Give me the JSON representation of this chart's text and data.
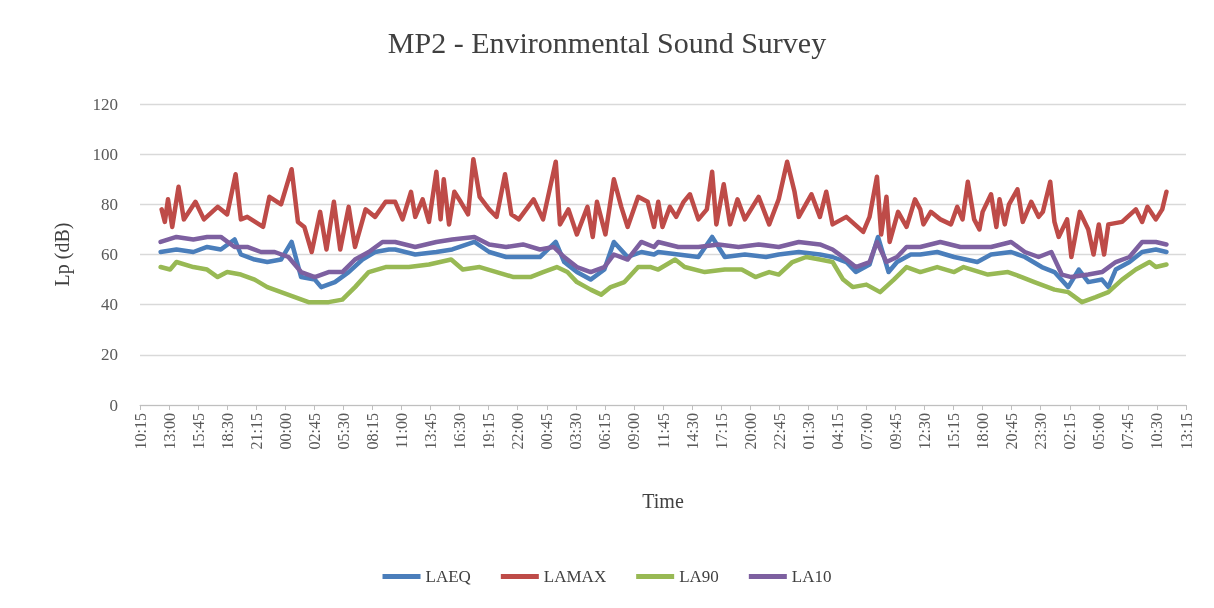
{
  "chart_data": {
    "type": "line",
    "title": "MP2 - Environmental Sound Survey",
    "xlabel": "Time",
    "ylabel": "Lp (dB)",
    "xlim": [
      "--01-01T10:15",
      "--01-05T13:15"
    ],
    "ylim": [
      0,
      120
    ],
    "yticks": [
      0,
      20,
      40,
      60,
      80,
      100,
      120
    ],
    "xticks": [
      {
        "value": "--01-01T10:15",
        "label": "10:15"
      },
      {
        "value": "--01-01T13:00",
        "label": "13:00"
      },
      {
        "value": "--01-01T15:45",
        "label": "15:45"
      },
      {
        "value": "--01-01T18:30",
        "label": "18:30"
      },
      {
        "value": "--01-01T21:15",
        "label": "21:15"
      },
      {
        "value": "--01-02T00:00",
        "label": "00:00"
      },
      {
        "value": "--01-02T02:45",
        "label": "02:45"
      },
      {
        "value": "--01-02T05:30",
        "label": "05:30"
      },
      {
        "value": "--01-02T08:15",
        "label": "08:15"
      },
      {
        "value": "--01-02T11:00",
        "label": "11:00"
      },
      {
        "value": "--01-02T13:45",
        "label": "13:45"
      },
      {
        "value": "--01-02T16:30",
        "label": "16:30"
      },
      {
        "value": "--01-02T19:15",
        "label": "19:15"
      },
      {
        "value": "--01-02T22:00",
        "label": "22:00"
      },
      {
        "value": "--01-03T00:45",
        "label": "00:45"
      },
      {
        "value": "--01-03T03:30",
        "label": "03:30"
      },
      {
        "value": "--01-03T06:15",
        "label": "06:15"
      },
      {
        "value": "--01-03T09:00",
        "label": "09:00"
      },
      {
        "value": "--01-03T11:45",
        "label": "11:45"
      },
      {
        "value": "--01-03T14:30",
        "label": "14:30"
      },
      {
        "value": "--01-03T17:15",
        "label": "17:15"
      },
      {
        "value": "--01-03T20:00",
        "label": "20:00"
      },
      {
        "value": "--01-03T22:45",
        "label": "22:45"
      },
      {
        "value": "--01-04T01:30",
        "label": "01:30"
      },
      {
        "value": "--01-04T04:15",
        "label": "04:15"
      },
      {
        "value": "--01-04T07:00",
        "label": "07:00"
      },
      {
        "value": "--01-04T09:45",
        "label": "09:45"
      },
      {
        "value": "--01-04T12:30",
        "label": "12:30"
      },
      {
        "value": "--01-04T15:15",
        "label": "15:15"
      },
      {
        "value": "--01-04T18:00",
        "label": "18:00"
      },
      {
        "value": "--01-04T20:45",
        "label": "20:45"
      },
      {
        "value": "--01-04T23:30",
        "label": "23:30"
      },
      {
        "value": "--01-05T02:15",
        "label": "02:15"
      },
      {
        "value": "--01-05T05:00",
        "label": "05:00"
      },
      {
        "value": "--01-05T07:45",
        "label": "07:45"
      },
      {
        "value": "--01-05T10:30",
        "label": "10:30"
      },
      {
        "value": "--01-05T13:15",
        "label": "13:15"
      }
    ],
    "grid": "y",
    "legend": "bottom",
    "marker": "none",
    "line_style": "solid",
    "series": [
      {
        "name": "LAEQ",
        "color": "#4a7ebb",
        "x": [
          "--01-01T12:12",
          "--01-01T13:42",
          "--01-01T15:18",
          "--01-01T16:36",
          "--01-01T17:54",
          "--01-01T19:12",
          "--01-01T19:48",
          "--01-01T21:06",
          "--01-01T22:18",
          "--01-01T23:36",
          "--01-02T00:36",
          "--01-02T01:30",
          "--01-02T02:48",
          "--01-02T03:24",
          "--01-02T04:42",
          "--01-02T06:00",
          "--01-02T07:18",
          "--01-02T08:30",
          "--01-02T09:48",
          "--01-02T10:24",
          "--01-02T12:18",
          "--01-02T14:18",
          "--01-02T15:48",
          "--01-02T17:54",
          "--01-02T19:18",
          "--01-02T20:54",
          "--01-02T22:30",
          "--01-03T00:06",
          "--01-03T01:36",
          "--01-03T02:24",
          "--01-03T03:36",
          "--01-03T04:54",
          "--01-03T06:12",
          "--01-03T07:06",
          "--01-03T08:24",
          "--01-03T09:42",
          "--01-03T10:54",
          "--01-03T11:18",
          "--01-03T13:12",
          "--01-03T15:06",
          "--01-03T16:24",
          "--01-03T17:36",
          "--01-03T19:30",
          "--01-03T21:30",
          "--01-03T22:42",
          "--01-04T00:36",
          "--01-04T02:36",
          "--01-04T03:48",
          "--01-04T05:06",
          "--01-04T06:00",
          "--01-04T07:18",
          "--01-04T08:06",
          "--01-04T09:06",
          "--01-04T09:54",
          "--01-04T11:12",
          "--01-04T12:06",
          "--01-04T13:42",
          "--01-04T15:18",
          "--01-04T17:30",
          "--01-04T18:48",
          "--01-04T20:42",
          "--01-04T22:00",
          "--01-04T23:36",
          "--01-05T00:48",
          "--01-05T02:06",
          "--01-05T03:06",
          "--01-05T04:00",
          "--01-05T05:18",
          "--01-05T05:54",
          "--01-05T06:36",
          "--01-05T07:54",
          "--01-05T09:06",
          "--01-05T10:24",
          "--01-05T11:24"
        ],
        "values": [
          61,
          62,
          61,
          63,
          62,
          66,
          60,
          58,
          57,
          58,
          65,
          51,
          50,
          47,
          49,
          53,
          58,
          61,
          62,
          62,
          60,
          61,
          62,
          65,
          61,
          59,
          59,
          59,
          65,
          57,
          53,
          50,
          54,
          65,
          59,
          61,
          60,
          61,
          60,
          59,
          67,
          59,
          60,
          59,
          60,
          61,
          60,
          59,
          57,
          53,
          56,
          67,
          53,
          57,
          60,
          60,
          61,
          59,
          57,
          60,
          61,
          59,
          55,
          53,
          47,
          54,
          49,
          50,
          47,
          54,
          57,
          61,
          62,
          61
        ]
      },
      {
        "name": "LAMAX",
        "color": "#be4b48",
        "x": [
          "--01-01T12:18",
          "--01-01T12:36",
          "--01-01T12:54",
          "--01-01T13:18",
          "--01-01T13:54",
          "--01-01T14:24",
          "--01-01T15:30",
          "--01-01T16:18",
          "--01-01T17:36",
          "--01-01T18:30",
          "--01-01T19:18",
          "--01-01T19:48",
          "--01-01T20:24",
          "--01-01T21:54",
          "--01-01T22:30",
          "--01-01T23:36",
          "--01-02T00:36",
          "--01-02T01:12",
          "--01-02T01:48",
          "--01-02T02:30",
          "--01-02T03:18",
          "--01-02T03:54",
          "--01-02T04:36",
          "--01-02T05:12",
          "--01-02T06:00",
          "--01-02T06:36",
          "--01-02T07:36",
          "--01-02T08:30",
          "--01-02T09:30",
          "--01-02T10:24",
          "--01-02T11:06",
          "--01-02T11:54",
          "--01-02T12:18",
          "--01-02T13:00",
          "--01-02T13:36",
          "--01-02T14:18",
          "--01-02T14:42",
          "--01-02T15:00",
          "--01-02T15:30",
          "--01-02T16:00",
          "--01-02T16:36",
          "--01-02T17:18",
          "--01-02T17:48",
          "--01-02T18:24",
          "--01-02T19:18",
          "--01-02T20:00",
          "--01-02T20:48",
          "--01-02T21:24",
          "--01-02T22:06",
          "--01-02T23:30",
          "--01-03T00:24",
          "--01-03T01:36",
          "--01-03T02:00",
          "--01-03T02:48",
          "--01-03T03:36",
          "--01-03T04:36",
          "--01-03T05:06",
          "--01-03T05:30",
          "--01-03T06:18",
          "--01-03T07:06",
          "--01-03T07:48",
          "--01-03T08:24",
          "--01-03T09:24",
          "--01-03T10:18",
          "--01-03T10:54",
          "--01-03T11:18",
          "--01-03T11:42",
          "--01-03T12:24",
          "--01-03T13:00",
          "--01-03T13:42",
          "--01-03T14:18",
          "--01-03T15:06",
          "--01-03T15:54",
          "--01-03T16:24",
          "--01-03T16:48",
          "--01-03T17:30",
          "--01-03T18:06",
          "--01-03T18:48",
          "--01-03T19:30",
          "--01-03T20:48",
          "--01-03T21:48",
          "--01-03T22:42",
          "--01-03T23:30",
          "--01-04T00:12",
          "--01-04T00:36",
          "--01-04T01:48",
          "--01-04T02:36",
          "--01-04T03:12",
          "--01-04T03:48",
          "--01-04T05:06",
          "--01-04T06:42",
          "--01-04T07:18",
          "--01-04T08:00",
          "--01-04T08:24",
          "--01-04T08:54",
          "--01-04T09:12",
          "--01-04T10:00",
          "--01-04T10:48",
          "--01-04T11:36",
          "--01-04T12:06",
          "--01-04T12:24",
          "--01-04T13:06",
          "--01-04T14:00",
          "--01-04T15:00",
          "--01-04T15:36",
          "--01-04T16:06",
          "--01-04T16:36",
          "--01-04T17:12",
          "--01-04T17:42",
          "--01-04T18:00",
          "--01-04T18:48",
          "--01-04T19:18",
          "--01-04T19:36",
          "--01-04T20:06",
          "--01-04T20:30",
          "--01-04T21:18",
          "--01-04T21:48",
          "--01-04T22:36",
          "--01-04T23:18",
          "--01-04T23:42",
          "--01-05T00:24",
          "--01-05T00:48",
          "--01-05T01:12",
          "--01-05T02:00",
          "--01-05T02:24",
          "--01-05T03:12",
          "--01-05T04:00",
          "--01-05T04:30",
          "--01-05T05:00",
          "--01-05T05:30",
          "--01-05T05:54",
          "--01-05T07:12",
          "--01-05T08:30",
          "--01-05T09:06",
          "--01-05T09:36",
          "--01-05T10:24",
          "--01-05T11:00",
          "--01-05T11:24"
        ],
        "values": [
          78,
          73,
          82,
          71,
          87,
          74,
          81,
          74,
          79,
          76,
          92,
          74,
          75,
          71,
          83,
          80,
          94,
          73,
          71,
          61,
          77,
          62,
          81,
          62,
          79,
          63,
          78,
          75,
          81,
          81,
          74,
          85,
          75,
          82,
          73,
          93,
          74,
          90,
          72,
          85,
          81,
          76,
          98,
          83,
          78,
          75,
          92,
          76,
          74,
          82,
          74,
          97,
          72,
          78,
          68,
          79,
          67,
          81,
          68,
          90,
          79,
          71,
          83,
          81,
          71,
          81,
          71,
          79,
          75,
          81,
          84,
          74,
          78,
          93,
          72,
          88,
          72,
          82,
          74,
          83,
          72,
          82,
          97,
          85,
          75,
          84,
          75,
          85,
          72,
          75,
          69,
          75,
          91,
          68,
          83,
          65,
          77,
          71,
          82,
          78,
          72,
          77,
          74,
          72,
          79,
          74,
          89,
          74,
          70,
          77,
          84,
          71,
          82,
          72,
          80,
          86,
          73,
          81,
          75,
          77,
          89,
          73,
          67,
          74,
          59,
          77,
          70,
          60,
          72,
          60,
          72,
          73,
          78,
          73,
          79,
          74,
          78,
          85
        ]
      },
      {
        "name": "LA90",
        "color": "#98b954",
        "x": [
          "--01-01T12:12",
          "--01-01T13:06",
          "--01-01T13:42",
          "--01-01T15:18",
          "--01-01T16:36",
          "--01-01T17:36",
          "--01-01T18:30",
          "--01-01T19:48",
          "--01-01T21:06",
          "--01-01T22:18",
          "--01-01T23:36",
          "--01-02T00:54",
          "--01-02T02:12",
          "--01-02T04:06",
          "--01-02T05:24",
          "--01-02T06:36",
          "--01-02T07:54",
          "--01-02T09:30",
          "--01-02T10:24",
          "--01-02T11:42",
          "--01-02T13:36",
          "--01-02T15:42",
          "--01-02T16:48",
          "--01-02T18:24",
          "--01-02T20:00",
          "--01-02T21:36",
          "--01-02T23:12",
          "--01-03T00:24",
          "--01-03T01:42",
          "--01-03T02:42",
          "--01-03T03:36",
          "--01-03T04:54",
          "--01-03T05:54",
          "--01-03T06:48",
          "--01-03T08:06",
          "--01-03T09:24",
          "--01-03T10:36",
          "--01-03T11:18",
          "--01-03T12:54",
          "--01-03T13:48",
          "--01-03T15:42",
          "--01-03T17:36",
          "--01-03T19:12",
          "--01-03T20:30",
          "--01-03T21:48",
          "--01-03T22:42",
          "--01-04T00:00",
          "--01-04T01:18",
          "--01-04T02:36",
          "--01-04T03:48",
          "--01-04T04:48",
          "--01-04T05:42",
          "--01-04T07:00",
          "--01-04T08:18",
          "--01-04T09:36",
          "--01-04T10:48",
          "--01-04T12:06",
          "--01-04T13:42",
          "--01-04T15:18",
          "--01-04T16:12",
          "--01-04T18:30",
          "--01-04T20:24",
          "--01-04T21:42",
          "--01-04T22:54",
          "--01-05T00:48",
          "--01-05T02:06",
          "--01-05T03:24",
          "--01-05T04:42",
          "--01-05T05:54",
          "--01-05T07:12",
          "--01-05T08:30",
          "--01-05T09:48",
          "--01-05T10:24",
          "--01-05T11:24"
        ],
        "values": [
          55,
          54,
          57,
          55,
          54,
          51,
          53,
          52,
          50,
          47,
          45,
          43,
          41,
          41,
          42,
          47,
          53,
          55,
          55,
          55,
          56,
          58,
          54,
          55,
          53,
          51,
          51,
          53,
          55,
          53,
          49,
          46,
          44,
          47,
          49,
          55,
          55,
          54,
          58,
          55,
          53,
          54,
          54,
          51,
          53,
          52,
          57,
          59,
          58,
          57,
          50,
          47,
          48,
          45,
          50,
          55,
          53,
          55,
          53,
          55,
          52,
          53,
          51,
          49,
          46,
          45,
          41,
          43,
          45,
          50,
          54,
          57,
          55,
          56
        ]
      },
      {
        "name": "LA10",
        "color": "#7d60a0",
        "x": [
          "--01-01T12:12",
          "--01-01T13:42",
          "--01-01T15:18",
          "--01-01T16:36",
          "--01-01T17:54",
          "--01-01T19:12",
          "--01-01T20:24",
          "--01-01T21:42",
          "--01-01T23:00",
          "--01-02T00:18",
          "--01-02T01:30",
          "--01-02T02:48",
          "--01-02T04:06",
          "--01-02T05:24",
          "--01-02T06:36",
          "--01-02T07:54",
          "--01-02T09:12",
          "--01-02T10:24",
          "--01-02T12:18",
          "--01-02T14:18",
          "--01-02T15:48",
          "--01-02T17:54",
          "--01-02T19:18",
          "--01-02T20:54",
          "--01-02T22:30",
          "--01-03T00:06",
          "--01-03T01:24",
          "--01-03T02:24",
          "--01-03T03:36",
          "--01-03T04:54",
          "--01-03T06:12",
          "--01-03T07:06",
          "--01-03T08:24",
          "--01-03T09:42",
          "--01-03T10:54",
          "--01-03T11:18",
          "--01-03T13:12",
          "--01-03T15:06",
          "--01-03T17:00",
          "--01-03T18:54",
          "--01-03T20:48",
          "--01-03T22:42",
          "--01-04T00:36",
          "--01-04T02:36",
          "--01-04T03:48",
          "--01-04T05:06",
          "--01-04T06:00",
          "--01-04T07:18",
          "--01-04T08:00",
          "--01-04T08:54",
          "--01-04T09:54",
          "--01-04T10:48",
          "--01-04T12:06",
          "--01-04T14:00",
          "--01-04T15:54",
          "--01-04T17:30",
          "--01-04T18:48",
          "--01-04T20:42",
          "--01-04T22:00",
          "--01-04T23:18",
          "--01-05T00:30",
          "--01-05T01:30",
          "--01-05T02:24",
          "--01-05T04:00",
          "--01-05T05:18",
          "--01-05T06:36",
          "--01-05T07:54",
          "--01-05T09:06",
          "--01-05T10:24",
          "--01-05T11:24"
        ],
        "values": [
          65,
          67,
          66,
          67,
          67,
          63,
          63,
          61,
          61,
          59,
          53,
          51,
          53,
          53,
          58,
          61,
          65,
          65,
          63,
          65,
          66,
          67,
          64,
          63,
          64,
          62,
          63,
          59,
          55,
          53,
          55,
          60,
          58,
          65,
          63,
          65,
          63,
          63,
          64,
          63,
          64,
          63,
          65,
          64,
          62,
          58,
          55,
          57,
          65,
          57,
          59,
          63,
          63,
          65,
          63,
          63,
          63,
          65,
          61,
          59,
          61,
          52,
          51,
          52,
          53,
          57,
          59,
          65,
          65,
          64
        ]
      }
    ]
  }
}
